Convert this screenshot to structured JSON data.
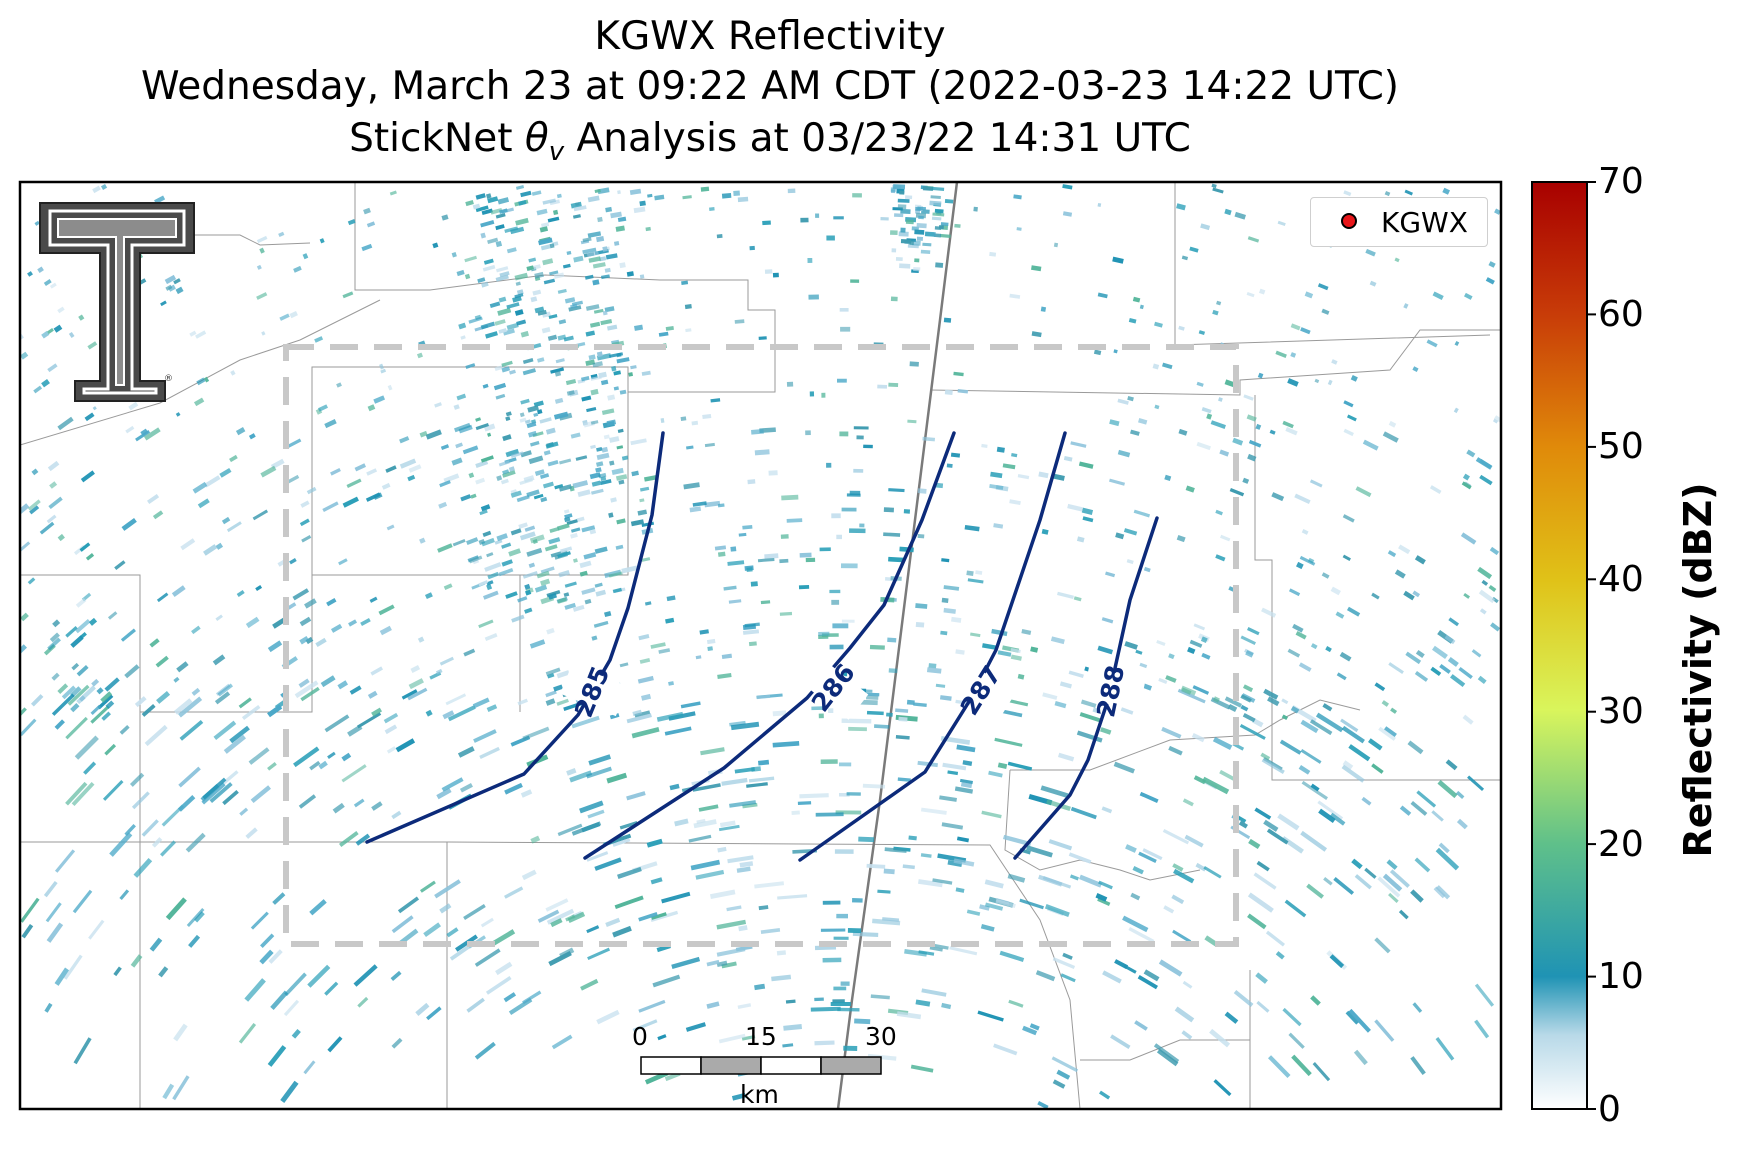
{
  "title": {
    "line1": "KGWX Reflectivity",
    "line2": "Wednesday, March 23 at 09:22 AM CDT (2022-03-23 14:22 UTC)",
    "line3_prefix": "StickNet ",
    "line3_symbol": "θ",
    "line3_sub": "v",
    "line3_suffix": " Analysis at 03/23/22 14:31 UTC"
  },
  "legend": {
    "label": "KGWX",
    "marker_color": "#e8161a"
  },
  "colorbar": {
    "label": "Reflectivity (dBZ)",
    "ticks": [
      "0",
      "10",
      "20",
      "30",
      "40",
      "50",
      "60",
      "70"
    ],
    "stops": [
      "#ffffff",
      "#1f93b4",
      "#5fc08a",
      "#d9f55c",
      "#e0c218",
      "#e08a0a",
      "#c83c08",
      "#a80000"
    ]
  },
  "scale_bar": {
    "labels": [
      "0",
      "15",
      "30"
    ],
    "unit": "km"
  },
  "contours": [
    {
      "value": "285",
      "color": "#0c2a7a"
    },
    {
      "value": "286",
      "color": "#0c2a7a"
    },
    {
      "value": "287",
      "color": "#0c2a7a"
    },
    {
      "value": "288",
      "color": "#0c2a7a"
    }
  ],
  "analysis_box": {
    "color": "#c8c8c8",
    "style": "dashed"
  },
  "logo": {
    "name": "Texas Tech Double T",
    "registered_mark": "®"
  }
}
